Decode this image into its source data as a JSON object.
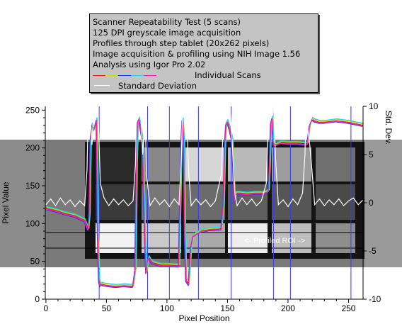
{
  "legend": {
    "lines": [
      "Scanner Repeatability Test (5 scans)",
      "125 DPI greyscale image acquisition",
      "Profiles through step tablet (20x262 pixels)",
      "Image acquisition & profiling using NIH Image 1.56",
      "Analysis using Igor Pro 2.02"
    ],
    "scans_label": "Individual Scans",
    "std_label": "Standard Deviation",
    "scan_colors": [
      "#ff1a1a",
      "#b4e600",
      "#1a3cff",
      "#19d9e6",
      "#ff1ab4"
    ],
    "std_color": "#ffffff"
  },
  "chart_data": {
    "type": "line",
    "xlabel": "Pixel Position",
    "ylabel": "Pixel Value",
    "y2label": "Std. Dev.",
    "xlim": [
      0,
      262
    ],
    "ylim": [
      0,
      255
    ],
    "y2lim": [
      -10,
      10
    ],
    "xticks": [
      0,
      50,
      100,
      150,
      200,
      250
    ],
    "yticks": [
      0,
      50,
      100,
      150,
      200,
      250
    ],
    "y2ticks": [
      -10,
      -5,
      0,
      5,
      10
    ],
    "vertical_markers": [
      44,
      84,
      102,
      126,
      153,
      188,
      202,
      252
    ],
    "annotation": "<- Profiled ROI ->",
    "series": [
      {
        "name": "Individual Scans",
        "x": [
          0,
          8,
          16,
          24,
          32,
          35,
          36,
          37,
          38,
          40,
          42,
          43,
          44,
          45,
          46,
          48,
          52,
          58,
          65,
          72,
          74,
          75,
          76,
          77,
          78,
          80,
          82,
          83,
          84,
          85,
          86,
          88,
          95,
          100,
          110,
          112,
          113,
          114,
          115,
          116,
          118,
          120,
          122,
          124,
          126,
          128,
          135,
          145,
          147,
          148,
          149,
          150,
          152,
          154,
          156,
          157,
          160,
          166,
          172,
          180,
          184,
          185,
          186,
          187,
          188,
          190,
          194,
          200,
          208,
          213,
          216,
          218,
          220,
          222,
          224,
          226,
          230,
          240,
          250,
          262
        ],
        "values": [
          120,
          117,
          113,
          110,
          104,
          92,
          112,
          210,
          230,
          225,
          238,
          90,
          25,
          18,
          20,
          19,
          18,
          17,
          18,
          17,
          40,
          180,
          235,
          238,
          230,
          210,
          80,
          35,
          50,
          55,
          52,
          48,
          45,
          45,
          44,
          210,
          238,
          210,
          80,
          25,
          20,
          70,
          84,
          86,
          88,
          90,
          92,
          93,
          130,
          205,
          232,
          235,
          225,
          210,
          130,
          140,
          140,
          139,
          140,
          140,
          143,
          180,
          232,
          240,
          205,
          204,
          207,
          206,
          206,
          205,
          205,
          230,
          238,
          236,
          235,
          234,
          234,
          236,
          234,
          230
        ]
      },
      {
        "name": "Standard Deviation",
        "axis": "right",
        "x": [
          0,
          4,
          8,
          12,
          16,
          20,
          24,
          28,
          32,
          34,
          35,
          36,
          38,
          40,
          43,
          45,
          48,
          52,
          56,
          60,
          64,
          68,
          72,
          74,
          75,
          76,
          78,
          80,
          82,
          83,
          86,
          90,
          94,
          98,
          102,
          106,
          110,
          112,
          113,
          114,
          116,
          118,
          120,
          124,
          128,
          132,
          136,
          140,
          145,
          147,
          148,
          150,
          152,
          154,
          156,
          158,
          162,
          166,
          170,
          174,
          178,
          182,
          184,
          185,
          186,
          188,
          190,
          192,
          196,
          200,
          204,
          208,
          212,
          214,
          215,
          216,
          218,
          220,
          222,
          226,
          230,
          234,
          238,
          242,
          246,
          250,
          254,
          258,
          262
        ],
        "values": [
          -0.2,
          0.4,
          -0.3,
          0.5,
          -0.2,
          0.3,
          -0.4,
          0.2,
          -0.3,
          3.5,
          10,
          10,
          6,
          10,
          10,
          2,
          0.5,
          -0.3,
          0.4,
          -0.2,
          0.3,
          -0.3,
          0.2,
          4,
          10,
          10,
          10,
          5,
          10,
          3,
          -0.3,
          0.5,
          -0.2,
          0.3,
          -0.4,
          0.4,
          -0.2,
          5,
          10,
          10,
          10,
          3,
          -0.3,
          0.4,
          -0.2,
          0.3,
          -0.4,
          0.2,
          3,
          10,
          10,
          10,
          10,
          6,
          1,
          -0.3,
          0.5,
          -0.2,
          0.4,
          -0.3,
          0.2,
          2,
          10,
          10,
          10,
          10,
          4,
          -0.2,
          0.3,
          -0.4,
          0.4,
          -0.2,
          1,
          5,
          10,
          8,
          6,
          3,
          -0.2,
          0.4,
          -0.3,
          0.3,
          -0.2,
          0.4,
          -0.3,
          0.2,
          0.5,
          -0.2,
          0.3
        ]
      }
    ]
  }
}
